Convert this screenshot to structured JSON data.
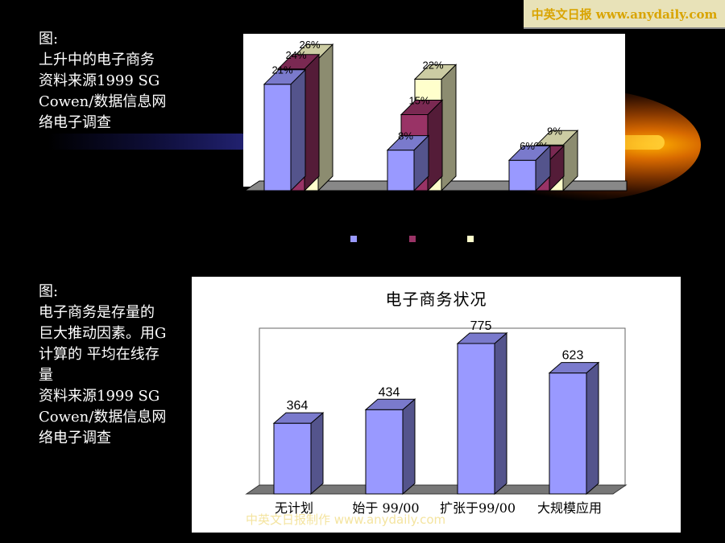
{
  "banner": {
    "text": "中英文日报 www.anydaily.com"
  },
  "caption_top": {
    "lines": [
      "图:",
      "上升中的电子商务",
      "资料来源1999 SG",
      "Cowen/数据信息网",
      "络电子调查"
    ]
  },
  "caption_bottom": {
    "lines": [
      "图:",
      "电子商务是存量的",
      "巨大推动因素。用G",
      "计算的 平均在线存",
      "量",
      "资料来源1999 SG",
      "Cowen/数据信息网",
      "络电子调查"
    ]
  },
  "watermark": {
    "text": "中英文日报制作 www.anydaily.com"
  },
  "colors": {
    "series1": "#9999ff",
    "series2": "#993366",
    "series3": "#ffffcc",
    "bar2": "#9999ff"
  },
  "chart_data": [
    {
      "type": "bar",
      "categories": [
        "",
        "",
        ""
      ],
      "series": [
        {
          "values": [
            21,
            8,
            6
          ]
        },
        {
          "values": [
            24,
            15,
            6
          ]
        },
        {
          "values": [
            26,
            22,
            9
          ]
        }
      ],
      "data_labels": [
        [
          "21%",
          "8%",
          "6%"
        ],
        [
          "24%",
          "15%",
          "6%"
        ],
        [
          "26%",
          "22%",
          "9%"
        ]
      ],
      "ylim": [
        0,
        28
      ],
      "legend": "bottom",
      "grid": false
    },
    {
      "type": "bar",
      "title": "电子商务状况",
      "categories": [
        "无计划",
        "始于 99/00",
        "扩张于99/00",
        "大规模应用"
      ],
      "values": [
        364,
        434,
        775,
        623
      ],
      "ylim": [
        0,
        820
      ],
      "grid": false
    }
  ]
}
